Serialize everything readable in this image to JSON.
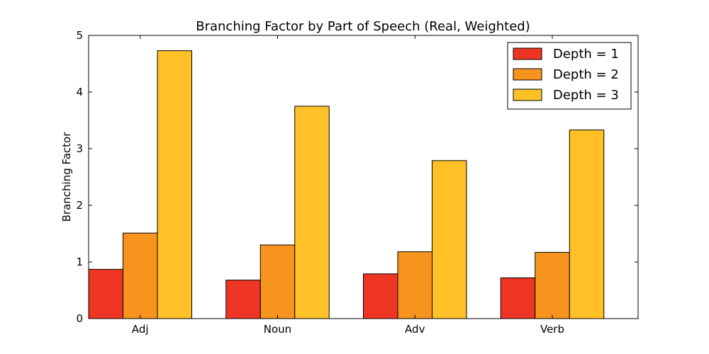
{
  "chart_data": {
    "type": "bar",
    "title": "Branching Factor by Part of Speech (Real, Weighted)",
    "xlabel": "",
    "ylabel": "Branching Factor",
    "ylim": [
      0,
      5
    ],
    "yticks": [
      "0",
      "1",
      "2",
      "3",
      "4",
      "5"
    ],
    "categories": [
      "Adj",
      "Noun",
      "Adv",
      "Verb"
    ],
    "series": [
      {
        "name": "Depth = 1",
        "color": "#ee3524",
        "values": [
          0.87,
          0.68,
          0.79,
          0.72
        ]
      },
      {
        "name": "Depth = 2",
        "color": "#f7941e",
        "values": [
          1.51,
          1.3,
          1.18,
          1.17
        ]
      },
      {
        "name": "Depth = 3",
        "color": "#ffc125",
        "values": [
          4.73,
          3.75,
          2.79,
          3.33
        ]
      }
    ],
    "legend_position": "top-right",
    "grid": false
  }
}
